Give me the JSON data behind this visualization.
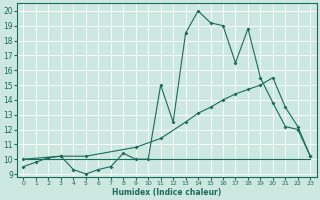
{
  "xlabel": "Humidex (Indice chaleur)",
  "bg_color": "#cce8e0",
  "line_color": "#1a6b5a",
  "grid_color": "#ffffff",
  "xlim": [
    -0.5,
    23.5
  ],
  "ylim": [
    8.8,
    20.5
  ],
  "yticks": [
    9,
    10,
    11,
    12,
    13,
    14,
    15,
    16,
    17,
    18,
    19,
    20
  ],
  "xticks": [
    0,
    1,
    2,
    3,
    4,
    5,
    6,
    7,
    8,
    9,
    10,
    11,
    12,
    13,
    14,
    15,
    16,
    17,
    18,
    19,
    20,
    21,
    22,
    23
  ],
  "line1_x": [
    0,
    1,
    2,
    3,
    4,
    5,
    6,
    7,
    8,
    9,
    10,
    11,
    12,
    13,
    14,
    15,
    16,
    17,
    18,
    19,
    20,
    21,
    22,
    23
  ],
  "line1_y": [
    9.5,
    9.8,
    10.1,
    10.2,
    9.3,
    9.0,
    9.3,
    9.5,
    10.4,
    10.0,
    10.0,
    15.0,
    12.5,
    18.5,
    20.0,
    19.2,
    19.0,
    16.5,
    18.8,
    15.5,
    13.8,
    12.2,
    12.0,
    10.2
  ],
  "line2_x": [
    0,
    23
  ],
  "line2_y": [
    10.0,
    10.0
  ],
  "line3_x": [
    0,
    3,
    5,
    9,
    11,
    13,
    14,
    15,
    16,
    17,
    18,
    19,
    20,
    21,
    22,
    23
  ],
  "line3_y": [
    10.0,
    10.2,
    10.2,
    10.8,
    11.4,
    12.5,
    13.1,
    13.5,
    14.0,
    14.4,
    14.7,
    15.0,
    15.5,
    13.5,
    12.2,
    10.2
  ]
}
